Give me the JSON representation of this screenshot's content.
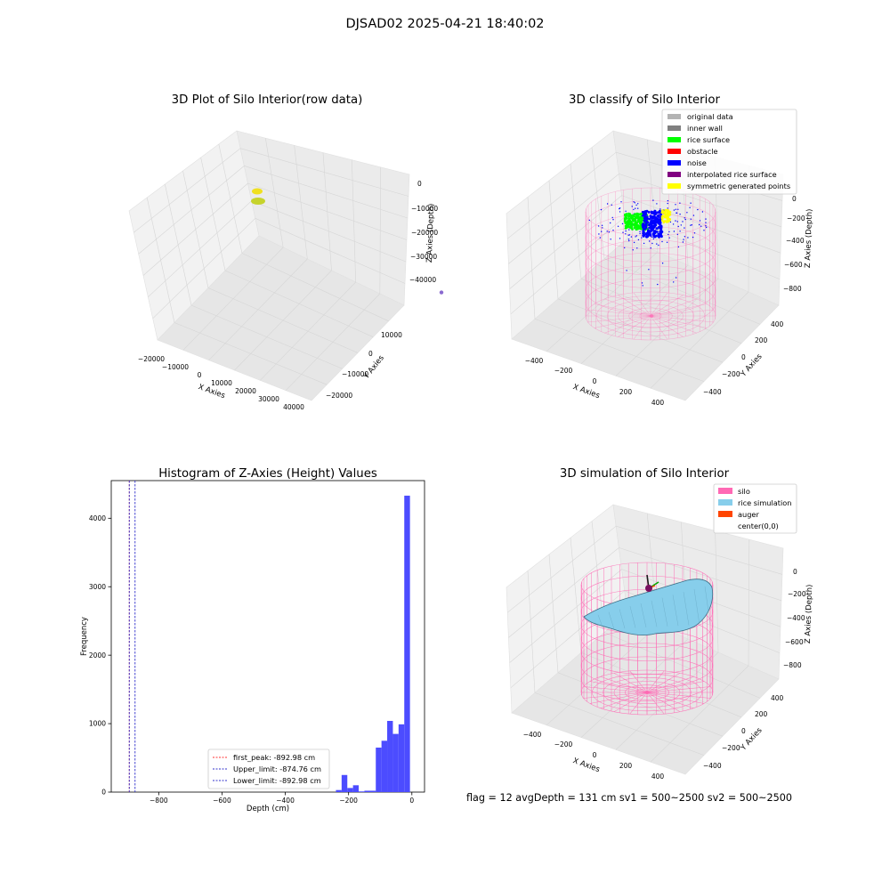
{
  "suptitle": "DJSAD02 2025-04-21 18:40:02",
  "footer": "flag = 12   avgDepth = 131 cm   sv1 = 500~2500   sv2 = 500~2500",
  "chart_data": [
    {
      "type": "scatter",
      "projection": "3d",
      "title": "3D Plot of Silo Interior(row data)",
      "xlabel": "X Axies",
      "ylabel": "Y Axies",
      "zlabel": "Z Axies (Depth)",
      "x_ticks": [
        "−20000",
        "−10000",
        "0",
        "10000",
        "20000",
        "30000",
        "40000"
      ],
      "y_ticks": [
        "−20000",
        "−10000",
        "0",
        "10000"
      ],
      "z_ticks": [
        "0",
        "−10000",
        "−20000",
        "−30000",
        "−40000"
      ],
      "points": [
        {
          "x": -24000,
          "y": -2000,
          "z": -12000,
          "color": "#3a9a80"
        },
        {
          "x": -19000,
          "y": 2000,
          "z": -16000,
          "color": "#3a9a80"
        },
        {
          "x": -9000,
          "y": 9000,
          "z": -7000,
          "color": "#c6d32c"
        },
        {
          "x": -2000,
          "y": 15000,
          "z": -4000,
          "color": "#a6e0c4"
        },
        {
          "x": 6000,
          "y": 14000,
          "z": -1500,
          "color": "#f0e020"
        },
        {
          "x": 6000,
          "y": 13000,
          "z": -3500,
          "color": "#c6d32c"
        },
        {
          "x": 40000,
          "y": 10000,
          "z": -40000,
          "color": "#8a6ad0"
        }
      ]
    },
    {
      "type": "scatter",
      "projection": "3d",
      "title": "3D classify of Silo Interior",
      "xlabel": "X Axies",
      "ylabel": "Y Axies",
      "zlabel": "Z Axies (Depth)",
      "x_ticks": [
        "−400",
        "−200",
        "0",
        "200",
        "400"
      ],
      "y_ticks": [
        "−400",
        "−200",
        "0",
        "200",
        "400"
      ],
      "z_ticks": [
        "0",
        "−200",
        "−400",
        "−600",
        "−800"
      ],
      "legend_position": "top-right",
      "legend": [
        {
          "label": "original data",
          "color": "#b3b3b3"
        },
        {
          "label": "inner wall",
          "color": "#808080"
        },
        {
          "label": "rice surface",
          "color": "#00ff00"
        },
        {
          "label": "obstacle",
          "color": "#ff0000"
        },
        {
          "label": "noise",
          "color": "#0000ff"
        },
        {
          "label": "interpolated rice surface",
          "color": "#800080"
        },
        {
          "label": "symmetric generated points",
          "color": "#ffff00"
        }
      ]
    },
    {
      "type": "bar",
      "title": "Histogram of Z-Axies (Height) Values",
      "xlabel": "Depth (cm)",
      "ylabel": "Frequency",
      "xlim": [
        -950,
        40
      ],
      "ylim": [
        0,
        4550
      ],
      "x_ticks": [
        {
          "value": -800,
          "label": "−800"
        },
        {
          "value": -600,
          "label": "−600"
        },
        {
          "value": -400,
          "label": "−400"
        },
        {
          "value": -200,
          "label": "−200"
        },
        {
          "value": 0,
          "label": "0"
        }
      ],
      "y_ticks": [
        {
          "value": 0,
          "label": "0"
        },
        {
          "value": 1000,
          "label": "1000"
        },
        {
          "value": 2000,
          "label": "2000"
        },
        {
          "value": 3000,
          "label": "3000"
        },
        {
          "value": 4000,
          "label": "4000"
        }
      ],
      "bins": [
        {
          "x0": -240,
          "x1": -222,
          "value": 30
        },
        {
          "x0": -222,
          "x1": -204,
          "value": 250
        },
        {
          "x0": -204,
          "x1": -186,
          "value": 60
        },
        {
          "x0": -186,
          "x1": -168,
          "value": 100
        },
        {
          "x0": -168,
          "x1": -150,
          "value": 10
        },
        {
          "x0": -150,
          "x1": -114,
          "value": 20
        },
        {
          "x0": -114,
          "x1": -96,
          "value": 650
        },
        {
          "x0": -96,
          "x1": -78,
          "value": 750
        },
        {
          "x0": -78,
          "x1": -60,
          "value": 1040
        },
        {
          "x0": -60,
          "x1": -42,
          "value": 850
        },
        {
          "x0": -42,
          "x1": -24,
          "value": 990
        },
        {
          "x0": -24,
          "x1": -6,
          "value": 4330
        }
      ],
      "bar_color": "#4c4cff",
      "vlines": [
        {
          "value": -892.98,
          "color": "#ff3333",
          "label": "first_peak: -892.98 cm"
        },
        {
          "value": -874.76,
          "color": "#3333cc",
          "label": "Upper_limit: -874.76 cm"
        },
        {
          "value": -892.98,
          "color": "#3333cc",
          "label": "Lower_limit: -892.98 cm"
        }
      ],
      "legend_position": "lower-center"
    },
    {
      "type": "surface",
      "projection": "3d",
      "title": "3D simulation of Silo Interior",
      "xlabel": "X Axies",
      "ylabel": "Y Axies",
      "zlabel": "Z Axies (Depth)",
      "x_ticks": [
        "−400",
        "−200",
        "0",
        "200",
        "400"
      ],
      "y_ticks": [
        "−400",
        "−200",
        "0",
        "200",
        "400"
      ],
      "z_ticks": [
        "0",
        "−200",
        "−400",
        "−600",
        "−800"
      ],
      "legend_position": "top-right",
      "legend": [
        {
          "label": "silo",
          "color": "#ff69b4"
        },
        {
          "label": "rice simulation",
          "color": "#87ceeb"
        },
        {
          "label": "auger",
          "color": "#ff4500"
        },
        {
          "label": "center(0,0)",
          "color": "#ffffff"
        }
      ]
    }
  ]
}
